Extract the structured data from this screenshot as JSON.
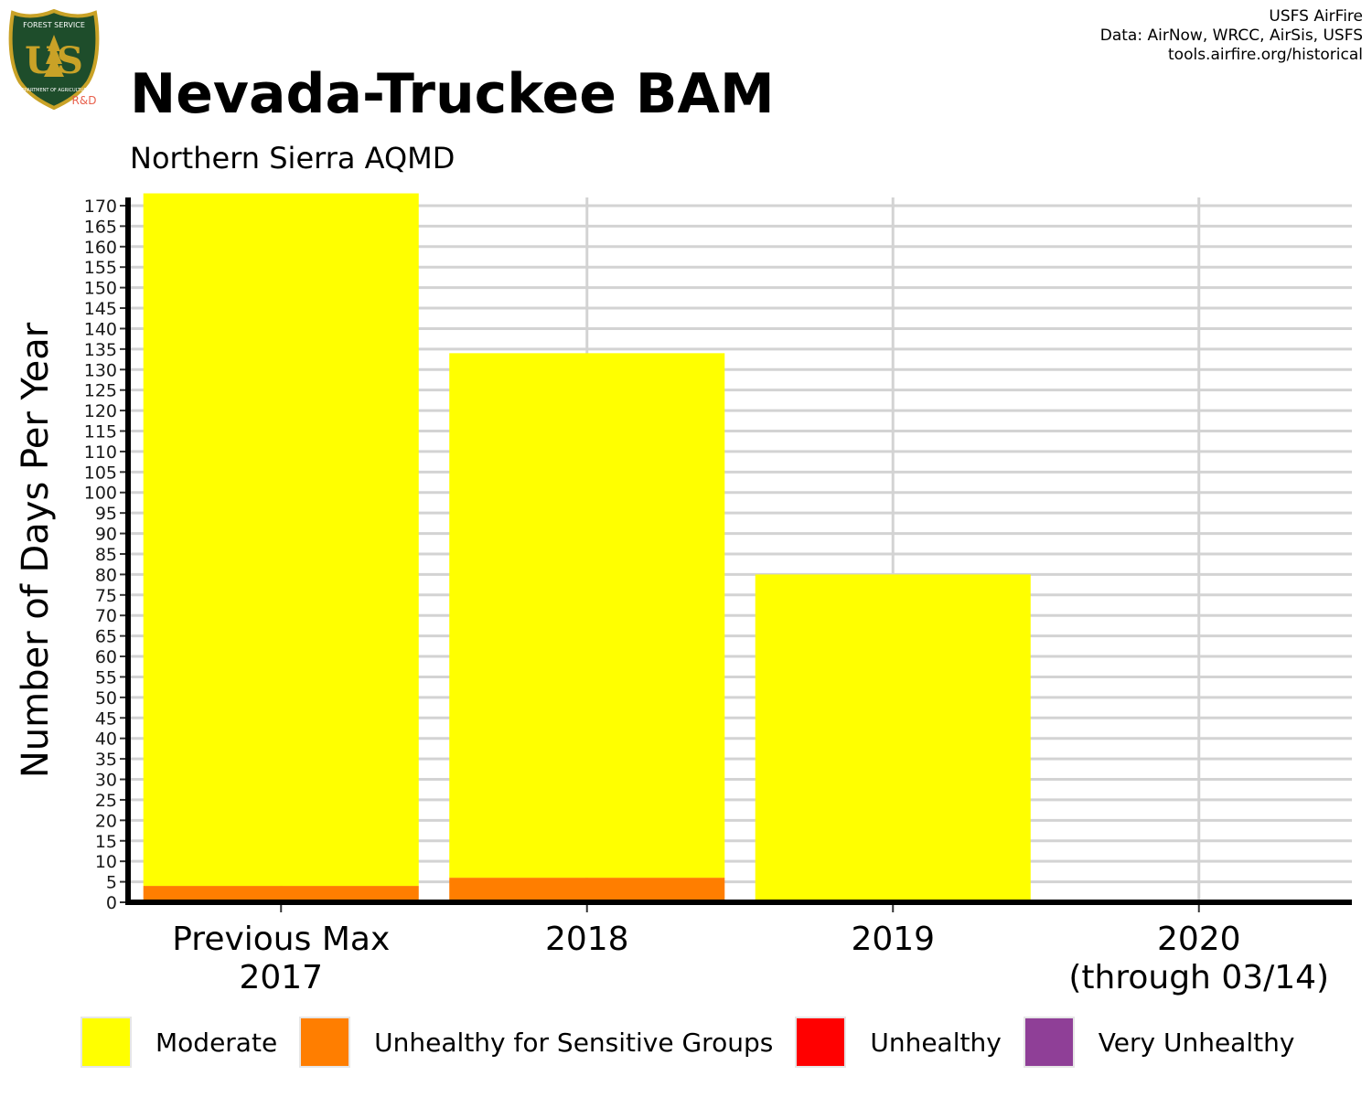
{
  "logo": {
    "top_text": "FOREST SERVICE",
    "mark": "US",
    "bottom_text": "DEPARTMENT OF AGRICULTURE",
    "tag": "R&D",
    "colors": {
      "shield": "#1e4d2b",
      "border": "#c9a227",
      "tag": "#e8604c"
    }
  },
  "header": {
    "title": "Nevada-Truckee BAM",
    "subtitle": "Northern Sierra AQMD"
  },
  "credits": {
    "line1": "USFS AirFire",
    "line2": "Data: AirNow, WRCC, AirSis, USFS",
    "line3": "tools.airfire.org/historical"
  },
  "chart_data": {
    "type": "bar",
    "stacked": true,
    "title": "Nevada-Truckee BAM",
    "subtitle": "Northern Sierra AQMD",
    "xlabel": "",
    "ylabel": "Number of Days Per Year",
    "ylim": [
      0,
      172
    ],
    "ytick_step": 5,
    "grid": true,
    "legend_position": "bottom",
    "categories": [
      [
        "Previous Max",
        "2017"
      ],
      [
        "2018"
      ],
      [
        "2019"
      ],
      [
        "2020",
        "(through 03/14)"
      ]
    ],
    "series": [
      {
        "name": "Moderate",
        "color": "#ffff00",
        "values": [
          169,
          128,
          80,
          0
        ]
      },
      {
        "name": "Unhealthy for Sensitive Groups",
        "color": "#ff7e00",
        "values": [
          4,
          6,
          0,
          0
        ]
      },
      {
        "name": "Unhealthy",
        "color": "#ff0000",
        "values": [
          0,
          0,
          0,
          0
        ]
      },
      {
        "name": "Very Unhealthy",
        "color": "#8f3f97",
        "values": [
          0,
          0,
          0,
          0
        ]
      }
    ]
  }
}
